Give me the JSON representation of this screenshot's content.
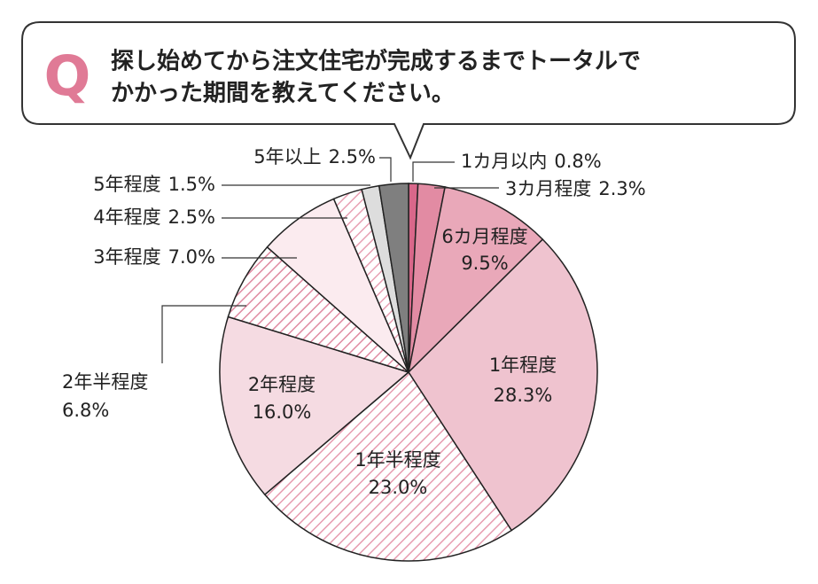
{
  "question_mark": "Q",
  "title": [
    "探し始めてから注文住宅が完成するまでトータルで",
    "かかった期間を教えてください。"
  ],
  "chart_data": {
    "type": "pie",
    "categories": [
      "1カ月以内",
      "3カ月程度",
      "6カ月程度",
      "1年程度",
      "1年半程度",
      "2年程度",
      "2年半程度",
      "3年程度",
      "4年程度",
      "5年程度",
      "5年以上"
    ],
    "values": [
      0.8,
      2.3,
      9.5,
      28.3,
      23.0,
      16.0,
      6.8,
      7.0,
      2.5,
      1.5,
      2.5
    ],
    "value_labels": [
      "0.8%",
      "2.3%",
      "9.5%",
      "28.3%",
      "23.0%",
      "16.0%",
      "6.8%",
      "7.0%",
      "2.5%",
      "1.5%",
      "2.5%"
    ],
    "colors": [
      "#d9678a",
      "#e28ba3",
      "#e9a8b9",
      "#efc3cf",
      "#e79cb0",
      "#f5dbe2",
      "#e08aa1",
      "#fbebef",
      "#e8a0b3",
      "#dddddd",
      "#7f7f7f"
    ],
    "hatched": [
      false,
      false,
      false,
      false,
      true,
      false,
      true,
      false,
      true,
      false,
      false
    ]
  }
}
